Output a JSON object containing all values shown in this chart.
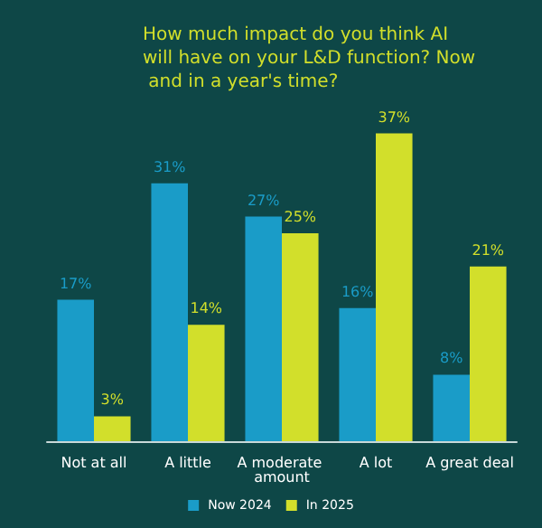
{
  "chart_data": {
    "type": "bar",
    "title": "How much impact do you think AI will have on your L&D function? Now and in a year's time?",
    "categories": [
      "Not at all",
      "A little",
      "A moderate amount",
      "A lot",
      "A great deal"
    ],
    "series": [
      {
        "name": "Now 2024",
        "color": "#1a9cc8",
        "values": [
          17,
          31,
          27,
          16,
          8
        ],
        "value_labels": [
          "17%",
          "31%",
          "27%",
          "16%",
          "8%"
        ]
      },
      {
        "name": "In 2025",
        "color": "#d2df2b",
        "values": [
          3,
          14,
          25,
          37,
          21
        ],
        "value_labels": [
          "3%",
          "14%",
          "25%",
          "37%",
          "21%"
        ]
      }
    ],
    "legend": "bottom",
    "tick_labels": "x"
  }
}
